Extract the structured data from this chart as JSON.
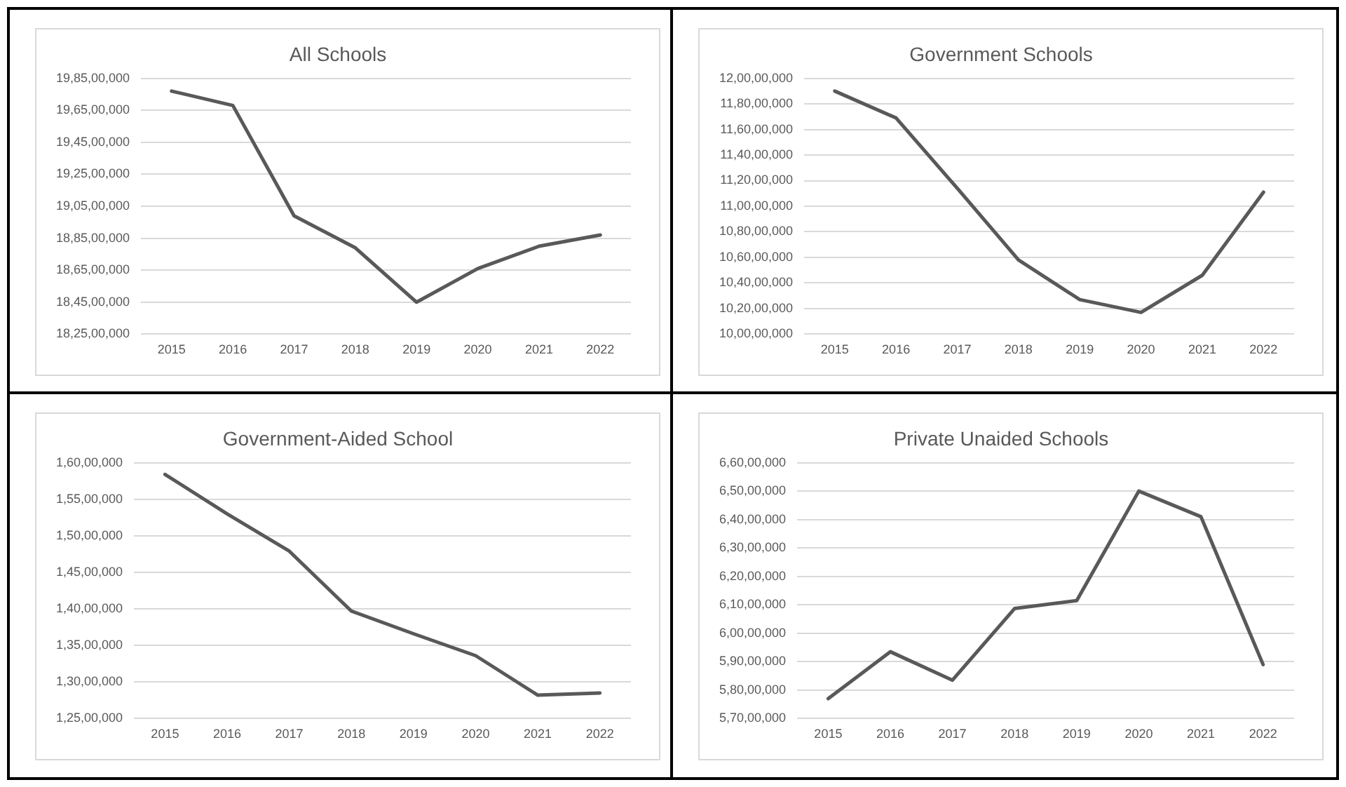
{
  "chart_data": [
    {
      "type": "line",
      "title": "All Schools",
      "categories": [
        "2015",
        "2016",
        "2017",
        "2018",
        "2019",
        "2020",
        "2021",
        "2022"
      ],
      "grid": "y",
      "series": [
        {
          "color": "#595959",
          "values": [
            197700000,
            196800000,
            189900000,
            187900000,
            184500000,
            186600000,
            188000000,
            188700000
          ]
        }
      ],
      "ylim": [
        182500000,
        198500000
      ],
      "yticks": [
        {
          "value": 182500000,
          "label": "18,25,00,000"
        },
        {
          "value": 184500000,
          "label": "18,45,00,000"
        },
        {
          "value": 186500000,
          "label": "18,65,00,000"
        },
        {
          "value": 188500000,
          "label": "18,85,00,000"
        },
        {
          "value": 190500000,
          "label": "19,05,00,000"
        },
        {
          "value": 192500000,
          "label": "19,25,00,000"
        },
        {
          "value": 194500000,
          "label": "19,45,00,000"
        },
        {
          "value": 196500000,
          "label": "19,65,00,000"
        },
        {
          "value": 198500000,
          "label": "19,85,00,000"
        }
      ]
    },
    {
      "type": "line",
      "title": "Government Schools",
      "categories": [
        "2015",
        "2016",
        "2017",
        "2018",
        "2019",
        "2020",
        "2021",
        "2022"
      ],
      "grid": "y",
      "series": [
        {
          "color": "#595959",
          "values": [
            119000000,
            116900000,
            111400000,
            105800000,
            102700000,
            101700000,
            104600000,
            111100000
          ]
        }
      ],
      "ylim": [
        100000000,
        120000000
      ],
      "yticks": [
        {
          "value": 100000000,
          "label": "10,00,00,000"
        },
        {
          "value": 102000000,
          "label": "10,20,00,000"
        },
        {
          "value": 104000000,
          "label": "10,40,00,000"
        },
        {
          "value": 106000000,
          "label": "10,60,00,000"
        },
        {
          "value": 108000000,
          "label": "10,80,00,000"
        },
        {
          "value": 110000000,
          "label": "11,00,00,000"
        },
        {
          "value": 112000000,
          "label": "11,20,00,000"
        },
        {
          "value": 114000000,
          "label": "11,40,00,000"
        },
        {
          "value": 116000000,
          "label": "11,60,00,000"
        },
        {
          "value": 118000000,
          "label": "11,80,00,000"
        },
        {
          "value": 120000000,
          "label": "12,00,00,000"
        }
      ]
    },
    {
      "type": "line",
      "title": "Government-Aided School",
      "categories": [
        "2015",
        "2016",
        "2017",
        "2018",
        "2019",
        "2020",
        "2021",
        "2022"
      ],
      "grid": "y",
      "series": [
        {
          "color": "#595959",
          "values": [
            15840000,
            15300000,
            14790000,
            13970000,
            13660000,
            13360000,
            12820000,
            12850000
          ]
        }
      ],
      "ylim": [
        12500000,
        16000000
      ],
      "yticks": [
        {
          "value": 12500000,
          "label": "1,25,00,000"
        },
        {
          "value": 13000000,
          "label": "1,30,00,000"
        },
        {
          "value": 13500000,
          "label": "1,35,00,000"
        },
        {
          "value": 14000000,
          "label": "1,40,00,000"
        },
        {
          "value": 14500000,
          "label": "1,45,00,000"
        },
        {
          "value": 15000000,
          "label": "1,50,00,000"
        },
        {
          "value": 15500000,
          "label": "1,55,00,000"
        },
        {
          "value": 16000000,
          "label": "1,60,00,000"
        }
      ]
    },
    {
      "type": "line",
      "title": "Private Unaided Schools",
      "categories": [
        "2015",
        "2016",
        "2017",
        "2018",
        "2019",
        "2020",
        "2021",
        "2022"
      ],
      "grid": "y",
      "series": [
        {
          "color": "#595959",
          "values": [
            57700000,
            59350000,
            58350000,
            60870000,
            61150000,
            65000000,
            64100000,
            58900000
          ]
        }
      ],
      "ylim": [
        57000000,
        66000000
      ],
      "yticks": [
        {
          "value": 57000000,
          "label": "5,70,00,000"
        },
        {
          "value": 58000000,
          "label": "5,80,00,000"
        },
        {
          "value": 59000000,
          "label": "5,90,00,000"
        },
        {
          "value": 60000000,
          "label": "6,00,00,000"
        },
        {
          "value": 61000000,
          "label": "6,10,00,000"
        },
        {
          "value": 62000000,
          "label": "6,20,00,000"
        },
        {
          "value": 63000000,
          "label": "6,30,00,000"
        },
        {
          "value": 64000000,
          "label": "6,40,00,000"
        },
        {
          "value": 65000000,
          "label": "6,50,00,000"
        },
        {
          "value": 66000000,
          "label": "6,60,00,000"
        }
      ]
    }
  ]
}
